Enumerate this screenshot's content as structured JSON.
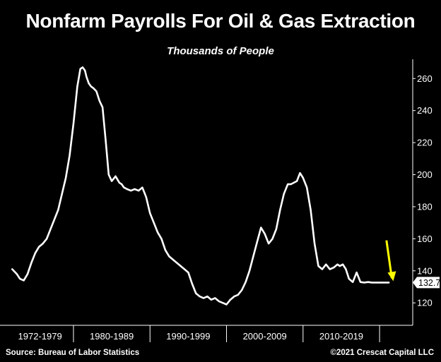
{
  "header": {
    "title": "Nonfarm Payrolls For Oil & Gas Extraction",
    "subtitle": "Thousands of People"
  },
  "footer": {
    "source": "Source: Bureau of Labor Statistics",
    "copyright": "©2021 Crescat Capital LLC"
  },
  "colors": {
    "line": "#ffffff",
    "arrow": "#ffff00",
    "axis": "#ffffff",
    "badge_text": "#000000",
    "badge_bg": "#ffffff"
  },
  "chart_data": {
    "type": "line",
    "title": "Nonfarm Payrolls For Oil & Gas Extraction",
    "subtitle": "Thousands of People",
    "xlabel": "",
    "ylabel": "",
    "ylim": [
      106,
      272
    ],
    "yticks": [
      120,
      140,
      160,
      180,
      200,
      220,
      240,
      260
    ],
    "grid": false,
    "legend": "none",
    "y_axis_side": "right",
    "x_ranges": [
      "1972-1979",
      "1980-1989",
      "1990-1999",
      "2000-2009",
      "2010-2019"
    ],
    "last_value_label": "132.7",
    "annotation": "yellow-down-arrow",
    "series": [
      {
        "x": [
          1972.0,
          1972.6,
          1973.0,
          1973.5,
          1974.0,
          1974.5,
          1975.0,
          1975.5,
          1976.0,
          1976.5,
          1977.0,
          1977.5,
          1978.0,
          1978.5,
          1979.0,
          1979.5,
          1980.0,
          1980.5,
          1980.9,
          1981.2,
          1981.5,
          1981.7,
          1982.0,
          1982.3,
          1982.6,
          1983.0,
          1983.4,
          1983.8,
          1984.2,
          1984.6,
          1985.0,
          1985.5,
          1986.0,
          1986.3,
          1986.6,
          1987.0,
          1987.5,
          1988.0,
          1988.5,
          1989.0,
          1989.5,
          1990.0,
          1990.5,
          1991.0,
          1991.5,
          1992.0,
          1992.5,
          1993.0,
          1993.5,
          1994.0,
          1994.5,
          1995.0,
          1995.5,
          1996.0,
          1996.5,
          1997.0,
          1997.5,
          1998.0,
          1998.5,
          1999.0,
          1999.5,
          2000.0,
          2000.5,
          2001.0,
          2001.5,
          2002.0,
          2002.5,
          2003.0,
          2003.5,
          2004.0,
          2004.5,
          2005.0,
          2005.5,
          2006.0,
          2006.5,
          2007.0,
          2007.5,
          2008.0,
          2008.4,
          2008.8,
          2009.2,
          2009.6,
          2010.0,
          2010.5,
          2011.0,
          2011.5,
          2012.0,
          2012.5,
          2013.0,
          2013.5,
          2014.0,
          2014.5,
          2014.8,
          2015.2,
          2015.6,
          2016.0,
          2016.5,
          2017.0,
          2017.5,
          2018.0,
          2018.5,
          2019.0,
          2019.5,
          2019.8,
          2020.2,
          2020.5,
          2020.8,
          2021.0,
          2021.2
        ],
        "y": [
          141,
          138,
          135,
          134,
          138,
          145,
          151,
          155,
          157,
          160,
          166,
          172,
          178,
          188,
          198,
          212,
          232,
          255,
          266,
          267,
          265,
          261,
          257,
          255,
          254,
          252,
          246,
          242,
          222,
          200,
          196,
          199,
          195,
          194,
          192,
          191,
          190,
          191,
          190,
          192,
          186,
          176,
          170,
          164,
          160,
          153,
          149,
          147,
          145,
          143,
          141,
          139,
          132,
          126,
          124,
          123,
          124,
          122,
          123,
          121,
          120,
          119,
          122,
          124,
          125,
          128,
          133,
          140,
          149,
          158,
          167,
          163,
          157,
          160,
          166,
          178,
          188,
          194,
          194,
          195,
          196,
          201,
          198,
          192,
          178,
          157,
          143,
          141,
          144,
          141,
          142,
          144,
          143,
          144,
          141,
          135,
          133,
          139,
          133,
          132.7,
          133,
          132.7,
          132.7,
          132.7,
          132.7,
          132.7,
          132.7,
          132.7,
          132.7
        ]
      }
    ]
  }
}
